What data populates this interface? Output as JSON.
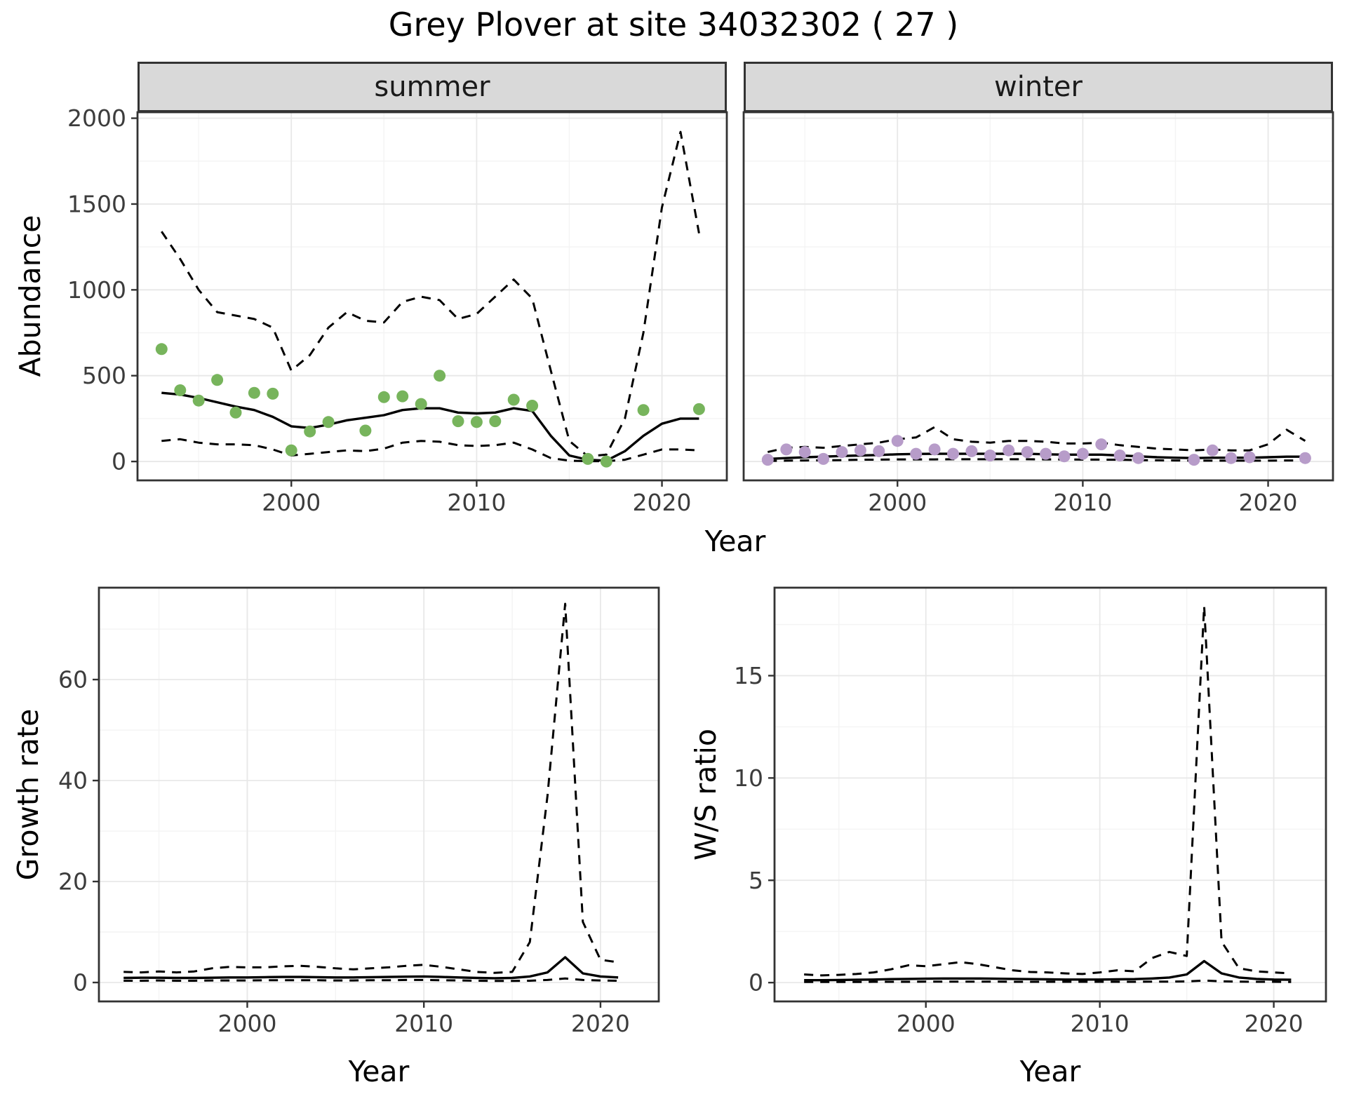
{
  "title": "Grey Plover at site 34032302 ( 27 )",
  "colors": {
    "summer_point": "#77b45c",
    "winter_point": "#b79cc9",
    "line": "#000000",
    "strip_bg": "#d9d9d9",
    "strip_border": "#333333",
    "panel_border": "#333333",
    "grid_major": "#e8e8e8",
    "grid_minor": "#f4f4f4",
    "axis_text": "#3c3c3c",
    "title_text": "#000000"
  },
  "chart_data": [
    {
      "id": "abundance-summer",
      "type": "line",
      "facet_label": "summer",
      "xlabel": "Year",
      "ylabel": "Abundance",
      "xlim": [
        1991.7,
        2023.5
      ],
      "ylim": [
        -110,
        2035
      ],
      "xticks": [
        2000,
        2010,
        2020
      ],
      "yticks": [
        0,
        500,
        1000,
        1500,
        2000
      ],
      "series": [
        {
          "name": "upper-ci",
          "style": "dashed",
          "x": [
            1993,
            1994,
            1995,
            1996,
            1997,
            1998,
            1999,
            2000,
            2001,
            2002,
            2003,
            2004,
            2005,
            2006,
            2007,
            2008,
            2009,
            2010,
            2011,
            2012,
            2013,
            2014,
            2015,
            2016,
            2017,
            2018,
            2019,
            2020,
            2021,
            2022
          ],
          "y": [
            1340,
            1180,
            1000,
            870,
            850,
            830,
            780,
            530,
            620,
            780,
            870,
            820,
            810,
            930,
            960,
            940,
            830,
            860,
            960,
            1060,
            950,
            530,
            120,
            30,
            40,
            250,
            750,
            1480,
            1920,
            1330
          ]
        },
        {
          "name": "lower-ci",
          "style": "dashed",
          "x": [
            1993,
            1994,
            1995,
            1996,
            1997,
            1998,
            1999,
            2000,
            2001,
            2002,
            2003,
            2004,
            2005,
            2006,
            2007,
            2008,
            2009,
            2010,
            2011,
            2012,
            2013,
            2014,
            2015,
            2016,
            2017,
            2018,
            2019,
            2020,
            2021,
            2022
          ],
          "y": [
            120,
            130,
            110,
            100,
            100,
            95,
            70,
            35,
            45,
            55,
            65,
            60,
            75,
            110,
            120,
            115,
            95,
            90,
            95,
            110,
            70,
            20,
            5,
            2,
            2,
            10,
            40,
            70,
            70,
            65
          ]
        },
        {
          "name": "fit",
          "style": "solid",
          "x": [
            1993,
            1994,
            1995,
            1996,
            1997,
            1998,
            1999,
            2000,
            2001,
            2002,
            2003,
            2004,
            2005,
            2006,
            2007,
            2008,
            2009,
            2010,
            2011,
            2012,
            2013,
            2014,
            2015,
            2016,
            2017,
            2018,
            2019,
            2020,
            2021,
            2022
          ],
          "y": [
            400,
            390,
            370,
            345,
            320,
            300,
            260,
            205,
            195,
            215,
            240,
            255,
            270,
            300,
            310,
            310,
            285,
            280,
            285,
            310,
            295,
            150,
            35,
            10,
            5,
            60,
            150,
            220,
            250,
            250
          ]
        },
        {
          "name": "observed",
          "style": "points",
          "color_key": "summer_point",
          "x": [
            1993,
            1994,
            1995,
            1996,
            1997,
            1998,
            1999,
            2000,
            2001,
            2002,
            2004,
            2005,
            2006,
            2007,
            2008,
            2009,
            2010,
            2011,
            2012,
            2013,
            2016,
            2017,
            2019,
            2022
          ],
          "y": [
            655,
            415,
            355,
            475,
            285,
            400,
            395,
            65,
            175,
            230,
            180,
            375,
            380,
            335,
            500,
            235,
            230,
            235,
            360,
            325,
            15,
            0,
            300,
            305
          ]
        }
      ]
    },
    {
      "id": "abundance-winter",
      "type": "line",
      "facet_label": "winter",
      "xlabel": "Year",
      "ylabel": "Abundance",
      "xlim": [
        1991.7,
        2023.5
      ],
      "ylim": [
        -110,
        2035
      ],
      "xticks": [
        2000,
        2010,
        2020
      ],
      "yticks": [
        0,
        500,
        1000,
        1500,
        2000
      ],
      "series": [
        {
          "name": "upper-ci",
          "style": "dashed",
          "x": [
            1993,
            1994,
            1995,
            1996,
            1997,
            1998,
            1999,
            2000,
            2001,
            2002,
            2003,
            2004,
            2005,
            2006,
            2007,
            2008,
            2009,
            2010,
            2011,
            2012,
            2013,
            2014,
            2015,
            2016,
            2017,
            2018,
            2019,
            2020,
            2021,
            2022
          ],
          "y": [
            55,
            80,
            85,
            80,
            90,
            100,
            110,
            130,
            140,
            200,
            130,
            115,
            110,
            120,
            120,
            115,
            105,
            105,
            110,
            95,
            85,
            75,
            70,
            65,
            70,
            65,
            65,
            100,
            185,
            120
          ]
        },
        {
          "name": "lower-ci",
          "style": "dashed",
          "x": [
            1993,
            1994,
            1995,
            1996,
            1997,
            1998,
            1999,
            2000,
            2001,
            2002,
            2003,
            2004,
            2005,
            2006,
            2007,
            2008,
            2009,
            2010,
            2011,
            2012,
            2013,
            2014,
            2015,
            2016,
            2017,
            2018,
            2019,
            2020,
            2021,
            2022
          ],
          "y": [
            3,
            5,
            6,
            7,
            8,
            10,
            11,
            12,
            12,
            12,
            13,
            13,
            13,
            13,
            13,
            12,
            12,
            11,
            11,
            10,
            8,
            7,
            6,
            5,
            5,
            5,
            5,
            5,
            6,
            6
          ]
        },
        {
          "name": "fit",
          "style": "solid",
          "x": [
            1993,
            1994,
            1995,
            1996,
            1997,
            1998,
            1999,
            2000,
            2001,
            2002,
            2003,
            2004,
            2005,
            2006,
            2007,
            2008,
            2009,
            2010,
            2011,
            2012,
            2013,
            2014,
            2015,
            2016,
            2017,
            2018,
            2019,
            2020,
            2021,
            2022
          ],
          "y": [
            15,
            20,
            25,
            28,
            32,
            35,
            38,
            42,
            44,
            45,
            45,
            45,
            45,
            45,
            45,
            42,
            40,
            40,
            40,
            35,
            30,
            25,
            22,
            20,
            22,
            22,
            22,
            25,
            28,
            28
          ]
        },
        {
          "name": "observed",
          "style": "points",
          "color_key": "winter_point",
          "x": [
            1993,
            1994,
            1995,
            1996,
            1997,
            1998,
            1999,
            2000,
            2001,
            2002,
            2003,
            2004,
            2005,
            2006,
            2007,
            2008,
            2009,
            2010,
            2011,
            2012,
            2013,
            2016,
            2017,
            2018,
            2019,
            2022
          ],
          "y": [
            10,
            70,
            55,
            15,
            55,
            65,
            60,
            120,
            45,
            70,
            45,
            60,
            35,
            65,
            55,
            45,
            30,
            45,
            100,
            35,
            20,
            10,
            65,
            20,
            25,
            20
          ]
        }
      ]
    },
    {
      "id": "growth-rate",
      "type": "line",
      "facet_label": "",
      "xlabel": "Year",
      "ylabel": "Growth rate",
      "xlim": [
        1991.6,
        2023.3
      ],
      "ylim": [
        -3.75,
        78.2
      ],
      "xticks": [
        2000,
        2010,
        2020
      ],
      "yticks": [
        0,
        20,
        40,
        60
      ],
      "series": [
        {
          "name": "upper-ci",
          "style": "dashed",
          "x": [
            1993,
            1994,
            1995,
            1996,
            1997,
            1998,
            1999,
            2000,
            2001,
            2002,
            2003,
            2004,
            2005,
            2006,
            2007,
            2008,
            2009,
            2010,
            2011,
            2012,
            2013,
            2014,
            2015,
            2016,
            2017,
            2018,
            2019,
            2020,
            2021
          ],
          "y": [
            2.1,
            2.0,
            2.2,
            2.0,
            2.2,
            2.8,
            3.1,
            3.0,
            3.0,
            3.2,
            3.3,
            3.1,
            2.8,
            2.6,
            2.8,
            3.0,
            3.3,
            3.5,
            3.1,
            2.6,
            2.1,
            1.9,
            2.1,
            8.0,
            37,
            75,
            12,
            4.5,
            4.0
          ]
        },
        {
          "name": "lower-ci",
          "style": "dashed",
          "x": [
            1993,
            1994,
            1995,
            1996,
            1997,
            1998,
            1999,
            2000,
            2001,
            2002,
            2003,
            2004,
            2005,
            2006,
            2007,
            2008,
            2009,
            2010,
            2011,
            2012,
            2013,
            2014,
            2015,
            2016,
            2017,
            2018,
            2019,
            2020,
            2021
          ],
          "y": [
            0.35,
            0.35,
            0.4,
            0.35,
            0.35,
            0.4,
            0.4,
            0.4,
            0.45,
            0.45,
            0.45,
            0.45,
            0.4,
            0.4,
            0.45,
            0.45,
            0.5,
            0.5,
            0.45,
            0.4,
            0.35,
            0.3,
            0.3,
            0.35,
            0.5,
            0.8,
            0.5,
            0.4,
            0.35
          ]
        },
        {
          "name": "fit",
          "style": "solid",
          "x": [
            1993,
            1994,
            1995,
            1996,
            1997,
            1998,
            1999,
            2000,
            2001,
            2002,
            2003,
            2004,
            2005,
            2006,
            2007,
            2008,
            2009,
            2010,
            2011,
            2012,
            2013,
            2014,
            2015,
            2016,
            2017,
            2018,
            2019,
            2020,
            2021
          ],
          "y": [
            0.9,
            0.95,
            0.95,
            0.9,
            0.9,
            0.95,
            1.0,
            1.0,
            1.05,
            1.1,
            1.1,
            1.05,
            1.0,
            1.0,
            1.05,
            1.1,
            1.15,
            1.2,
            1.1,
            1.0,
            0.9,
            0.85,
            0.9,
            1.2,
            2.0,
            5.0,
            1.8,
            1.2,
            1.0
          ]
        }
      ]
    },
    {
      "id": "ws-ratio",
      "type": "line",
      "facet_label": "",
      "xlabel": "Year",
      "ylabel": "W/S ratio",
      "xlim": [
        1991.3,
        2023.0
      ],
      "ylim": [
        -0.92,
        19.3
      ],
      "xticks": [
        2000,
        2010,
        2020
      ],
      "yticks": [
        0,
        5,
        10,
        15
      ],
      "series": [
        {
          "name": "upper-ci",
          "style": "dashed",
          "x": [
            1993,
            1994,
            1995,
            1996,
            1997,
            1998,
            1999,
            2000,
            2001,
            2002,
            2003,
            2004,
            2005,
            2006,
            2007,
            2008,
            2009,
            2010,
            2011,
            2012,
            2013,
            2014,
            2015,
            2016,
            2017,
            2018,
            2019,
            2020,
            2021
          ],
          "y": [
            0.4,
            0.35,
            0.38,
            0.42,
            0.5,
            0.65,
            0.85,
            0.8,
            0.9,
            1.0,
            0.9,
            0.75,
            0.6,
            0.52,
            0.5,
            0.45,
            0.42,
            0.5,
            0.6,
            0.55,
            1.2,
            1.5,
            1.3,
            18.4,
            2.0,
            0.7,
            0.55,
            0.5,
            0.45
          ]
        },
        {
          "name": "lower-ci",
          "style": "dashed",
          "x": [
            1993,
            1994,
            1995,
            1996,
            1997,
            1998,
            1999,
            2000,
            2001,
            2002,
            2003,
            2004,
            2005,
            2006,
            2007,
            2008,
            2009,
            2010,
            2011,
            2012,
            2013,
            2014,
            2015,
            2016,
            2017,
            2018,
            2019,
            2020,
            2021
          ],
          "y": [
            0.03,
            0.03,
            0.03,
            0.03,
            0.04,
            0.04,
            0.04,
            0.05,
            0.05,
            0.05,
            0.05,
            0.05,
            0.04,
            0.04,
            0.04,
            0.04,
            0.04,
            0.04,
            0.04,
            0.04,
            0.05,
            0.05,
            0.06,
            0.1,
            0.06,
            0.05,
            0.04,
            0.04,
            0.03
          ]
        },
        {
          "name": "fit",
          "style": "solid",
          "x": [
            1993,
            1994,
            1995,
            1996,
            1997,
            1998,
            1999,
            2000,
            2001,
            2002,
            2003,
            2004,
            2005,
            2006,
            2007,
            2008,
            2009,
            2010,
            2011,
            2012,
            2013,
            2014,
            2015,
            2016,
            2017,
            2018,
            2019,
            2020,
            2021
          ],
          "y": [
            0.12,
            0.12,
            0.13,
            0.14,
            0.15,
            0.17,
            0.18,
            0.19,
            0.2,
            0.2,
            0.2,
            0.19,
            0.18,
            0.17,
            0.16,
            0.15,
            0.15,
            0.15,
            0.16,
            0.17,
            0.2,
            0.25,
            0.4,
            1.05,
            0.45,
            0.25,
            0.18,
            0.15,
            0.14
          ]
        }
      ]
    }
  ]
}
